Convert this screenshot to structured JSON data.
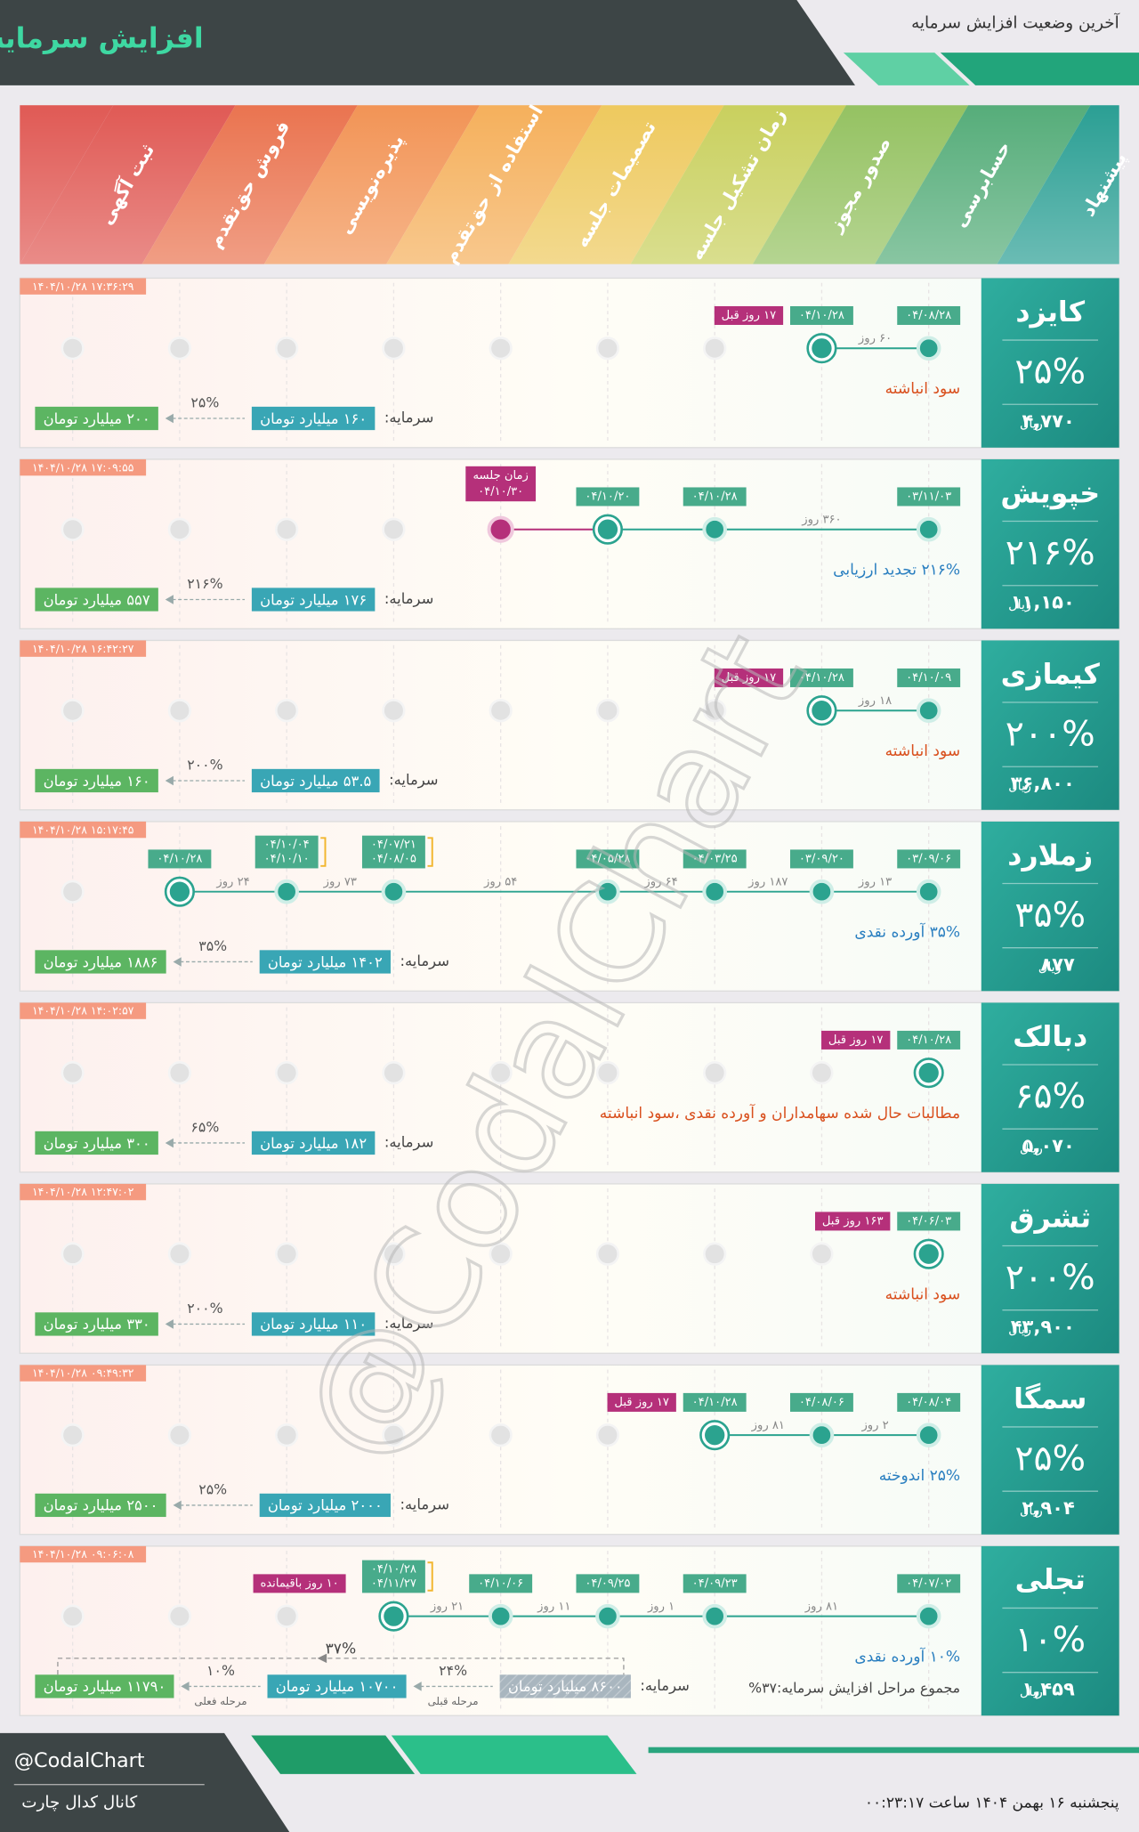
{
  "header": {
    "title": "افزایش سرمایه",
    "subtitle": "آخرین وضعیت افزایش سرمایه"
  },
  "stages": [
    "پیشنهاد",
    "حسابرسی",
    "صدور مجوز",
    "زمان تشکیل جلسه",
    "تصمیمات جلسه",
    "استفاده از حق‌تقدم",
    "پذیره‌نویسی",
    "فروش حق‌تقدم",
    "ثبت آگهی"
  ],
  "cards": [
    {
      "name": "کایزد",
      "change": "۲۵%",
      "price": "۴,۷۷۰",
      "price_unit": "ریال",
      "timestamp": "۱۴۰۴/۱۰/۲۸ ۱۷:۳۶:۲۹",
      "events": [
        {
          "dates": [
            "۰۴/۰۸/۲۸"
          ],
          "state": "done"
        },
        {
          "dates": [
            "۰۴/۱۰/۲۸"
          ],
          "state": "current",
          "note": "۱۷ روز قبل"
        },
        null,
        null,
        null,
        null,
        null,
        null,
        null
      ],
      "durations": [
        "۶۰ روز"
      ],
      "description": "سود انباشته",
      "description_color": "#d9501e",
      "capital": {
        "label": "سرمایه:",
        "amounts": [
          "۱۶۰ میلیارد تومان",
          "۲۰۰ میلیارد تومان"
        ],
        "changes": [
          "۲۵%"
        ]
      }
    },
    {
      "name": "خپویش",
      "change": "۲۱۶%",
      "price": "۱۱,۱۵۰",
      "price_unit": "ریال",
      "timestamp": "۱۴۰۴/۱۰/۲۸ ۱۷:۰۹:۵۵",
      "events": [
        {
          "dates": [
            "۰۳/۱۱/۰۳"
          ],
          "state": "done"
        },
        null,
        {
          "dates": [
            "۰۴/۱۰/۲۸"
          ],
          "state": "done"
        },
        {
          "dates": [
            "۰۴/۱۰/۲۰"
          ],
          "state": "current"
        },
        {
          "label": "زمان جلسه",
          "dates": [
            "۰۴/۱۰/۳۰"
          ],
          "state": "meeting"
        },
        null,
        null,
        null,
        null
      ],
      "durations": [
        "۳۶۰ روز",
        null,
        null
      ],
      "description": "۲۱۶% تجدید ارزیابی",
      "description_color": "#2a7fc0",
      "capital": {
        "label": "سرمایه:",
        "amounts": [
          "۱۷۶ میلیارد تومان",
          "۵۵۷ میلیارد تومان"
        ],
        "changes": [
          "۲۱۶%"
        ]
      }
    },
    {
      "name": "کیمازی",
      "change": "۲۰۰%",
      "price": "۳۶,۸۰۰",
      "price_unit": "ریال",
      "timestamp": "۱۴۰۴/۱۰/۲۸ ۱۶:۴۲:۲۷",
      "events": [
        {
          "dates": [
            "۰۴/۱۰/۰۹"
          ],
          "state": "done"
        },
        {
          "dates": [
            "۰۴/۱۰/۲۸"
          ],
          "state": "current",
          "note": "۱۷ روز قبل"
        },
        null,
        null,
        null,
        null,
        null,
        null,
        null
      ],
      "durations": [
        "۱۸ روز"
      ],
      "description": "سود انباشته",
      "description_color": "#d9501e",
      "capital": {
        "label": "سرمایه:",
        "amounts": [
          "۵۳.۵ میلیارد تومان",
          "۱۶۰ میلیارد تومان"
        ],
        "changes": [
          "۲۰۰%"
        ]
      }
    },
    {
      "name": "زملارد",
      "change": "۳۵%",
      "price": "۸۷۷",
      "price_unit": "ریال",
      "timestamp": "۱۴۰۴/۱۰/۲۸ ۱۵:۱۷:۴۵",
      "events": [
        {
          "dates": [
            "۰۳/۰۹/۰۶"
          ],
          "state": "done"
        },
        {
          "dates": [
            "۰۳/۰۹/۲۰"
          ],
          "state": "done"
        },
        {
          "dates": [
            "۰۴/۰۳/۲۵"
          ],
          "state": "done"
        },
        {
          "dates": [
            "۰۴/۰۵/۲۸"
          ],
          "state": "done"
        },
        null,
        {
          "dates": [
            "۰۴/۰۷/۲۱",
            "۰۴/۰۸/۰۵"
          ],
          "state": "done"
        },
        {
          "dates": [
            "۰۴/۱۰/۰۴",
            "۰۴/۱۰/۱۰"
          ],
          "state": "done"
        },
        {
          "dates": [
            "۰۴/۱۰/۲۸"
          ],
          "state": "current"
        },
        null
      ],
      "durations": [
        "۱۳ روز",
        "۱۸۷ روز",
        "۶۴ روز",
        "۵۴ روز",
        "۷۳ روز",
        "۲۴ روز"
      ],
      "description": "۳۵% آورده نقدی",
      "description_color": "#2a7fc0",
      "capital": {
        "label": "سرمایه:",
        "amounts": [
          "۱۴۰۲ میلیارد تومان",
          "۱۸۸۶ میلیارد تومان"
        ],
        "changes": [
          "۳۵%"
        ]
      }
    },
    {
      "name": "دبالک",
      "change": "۶۵%",
      "price": "۵,۰۷۰",
      "price_unit": "ریال",
      "timestamp": "۱۴۰۴/۱۰/۲۸ ۱۴:۰۲:۵۷",
      "events": [
        {
          "dates": [
            "۰۴/۱۰/۲۸"
          ],
          "state": "current",
          "note": "۱۷ روز قبل"
        },
        null,
        null,
        null,
        null,
        null,
        null,
        null,
        null
      ],
      "durations": [],
      "description": "مطالبات حال شده سهامداران و آورده نقدی ،سود انباشته",
      "description_color": "#d9501e",
      "capital": {
        "label": "سرمایه:",
        "amounts": [
          "۱۸۲ میلیارد تومان",
          "۳۰۰ میلیارد تومان"
        ],
        "changes": [
          "۶۵%"
        ]
      }
    },
    {
      "name": "ثشرق",
      "change": "۲۰۰%",
      "price": "۴۳,۹۰۰",
      "price_unit": "ریال",
      "timestamp": "۱۴۰۴/۱۰/۲۸ ۱۲:۴۷:۰۲",
      "events": [
        {
          "dates": [
            "۰۴/۰۶/۰۳"
          ],
          "state": "current",
          "note": "۱۶۳ روز قبل"
        },
        null,
        null,
        null,
        null,
        null,
        null,
        null,
        null
      ],
      "durations": [],
      "description": "سود انباشته",
      "description_color": "#d9501e",
      "capital": {
        "label": "سرمایه:",
        "amounts": [
          "۱۱۰ میلیارد تومان",
          "۳۳۰ میلیارد تومان"
        ],
        "changes": [
          "۲۰۰%"
        ]
      }
    },
    {
      "name": "سمگا",
      "change": "۲۵%",
      "price": "۲,۹۰۴",
      "price_unit": "ریال",
      "timestamp": "۱۴۰۴/۱۰/۲۸ ۰۹:۴۹:۳۲",
      "events": [
        {
          "dates": [
            "۰۴/۰۸/۰۴"
          ],
          "state": "done"
        },
        {
          "dates": [
            "۰۴/۰۸/۰۶"
          ],
          "state": "done"
        },
        {
          "dates": [
            "۰۴/۱۰/۲۸"
          ],
          "state": "current",
          "note": "۱۷ روز قبل"
        },
        null,
        null,
        null,
        null,
        null,
        null
      ],
      "durations": [
        "۲ روز",
        "۸۱ روز"
      ],
      "description": "۲۵% اندوخته",
      "description_color": "#2a7fc0",
      "capital": {
        "label": "سرمایه:",
        "amounts": [
          "۲۰۰۰ میلیارد تومان",
          "۲۵۰۰ میلیارد تومان"
        ],
        "changes": [
          "۲۵%"
        ]
      }
    },
    {
      "name": "تجلی",
      "change": "۱۰%",
      "price": "۱,۴۵۹",
      "price_unit": "ریال",
      "timestamp": "۱۴۰۴/۱۰/۲۸ ۰۹:۰۶:۰۸",
      "events": [
        {
          "dates": [
            "۰۴/۰۷/۰۲"
          ],
          "state": "done"
        },
        null,
        {
          "dates": [
            "۰۴/۰۹/۲۳"
          ],
          "state": "done"
        },
        {
          "dates": [
            "۰۴/۰۹/۲۵"
          ],
          "state": "done"
        },
        {
          "dates": [
            "۰۴/۱۰/۰۶"
          ],
          "state": "done"
        },
        {
          "dates": [
            "۰۴/۱۰/۲۸",
            "۰۴/۱۱/۲۷"
          ],
          "state": "current",
          "note": "۱۰ روز باقیمانده"
        },
        null,
        null,
        null
      ],
      "durations": [
        "۸۱ روز",
        "۱ روز",
        "۱۱ روز",
        "۲۱ روز"
      ],
      "description": "۱۰% آورده نقدی",
      "description_color": "#2a7fc0",
      "total_note": "مجموع مراحل افزایش سرمایه:۳۷%",
      "capital": {
        "label": "سرمایه:",
        "amounts": [
          "۸۶۰۰ میلیارد تومان",
          "۱۰۷۰۰ میلیارد تومان",
          "۱۱۷۹۰ میلیارد تومان"
        ],
        "changes": [
          "۲۴%",
          "۱۰%"
        ],
        "change_labels": [
          "مرحله قبلی",
          "مرحله فعلی"
        ],
        "total": "۳۷%"
      }
    }
  ],
  "watermark": "@CodalChart",
  "footer": {
    "handle": "@CodalChart",
    "channel": "کانال کدال چارت",
    "datetime": "پنجشنبه ۱۶ بهمن ۱۴۰۴ ساعت ۰۰:۲۳:۱۷"
  }
}
